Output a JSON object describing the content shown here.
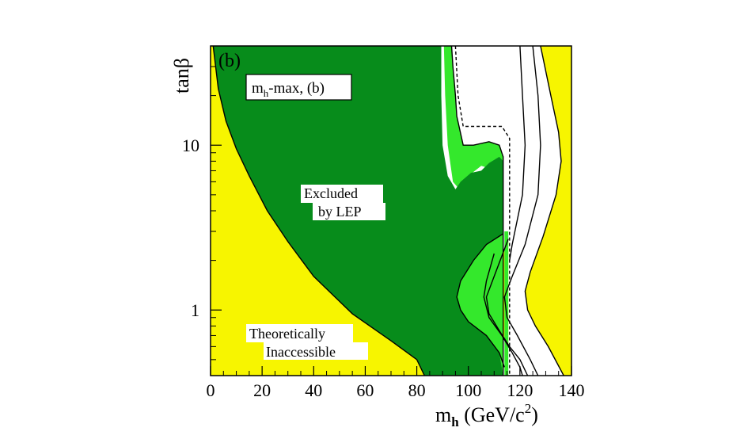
{
  "chart_data": {
    "type": "exclusion-region",
    "panel_label": "(b)",
    "scenario_label": {
      "main": "m",
      "sub": "h",
      "rest": "-max, (b)"
    },
    "xlabel": {
      "main": "m",
      "sub": "h",
      "units": " (GeV/c",
      "sup": "2",
      "close": ")"
    },
    "ylabel": "tanβ",
    "x_scale": "linear",
    "y_scale": "log",
    "xlim": [
      0,
      140
    ],
    "ylim": [
      0.4,
      40
    ],
    "x_ticks": [
      0,
      20,
      40,
      60,
      80,
      100,
      120,
      140
    ],
    "y_ticks": [
      1,
      10
    ],
    "annotations": {
      "excluded": [
        "Excluded",
        "by LEP"
      ],
      "theoretical": [
        "Theoretically",
        "Inaccessible"
      ]
    },
    "colors": {
      "excluded": "#078c1b",
      "expected": "#34e82c",
      "theoretical": "#f7f500",
      "background": "#ffffff",
      "line": "#000000"
    },
    "regions": {
      "theoretical_left": [
        [
          0,
          40
        ],
        [
          0,
          0.4
        ],
        [
          83,
          0.4
        ],
        [
          80,
          0.5
        ],
        [
          70,
          0.65
        ],
        [
          55,
          0.95
        ],
        [
          40,
          1.6
        ],
        [
          30,
          2.6
        ],
        [
          22,
          4
        ],
        [
          15,
          6.5
        ],
        [
          10,
          9.5
        ],
        [
          6,
          14
        ],
        [
          3,
          22
        ],
        [
          1,
          40
        ]
      ],
      "theoretical_right": [
        [
          128,
          40
        ],
        [
          132,
          20
        ],
        [
          135,
          12
        ],
        [
          136,
          8
        ],
        [
          134,
          5
        ],
        [
          129,
          2.8
        ],
        [
          124,
          1.7
        ],
        [
          122,
          1.3
        ],
        [
          123,
          1.0
        ],
        [
          126,
          0.8
        ],
        [
          131,
          0.6
        ],
        [
          137,
          0.4
        ],
        [
          140,
          0.4
        ],
        [
          140,
          40
        ]
      ],
      "theoretical_inner_island": [
        [
          115.5,
          2.7
        ],
        [
          110,
          1.6
        ],
        [
          107,
          1.2
        ],
        [
          108,
          0.95
        ],
        [
          112,
          0.75
        ],
        [
          115.5,
          0.6
        ]
      ],
      "expected_band": [
        [
          90.5,
          40
        ],
        [
          93.5,
          40
        ],
        [
          94,
          30
        ],
        [
          95,
          20
        ],
        [
          95.5,
          15
        ],
        [
          98,
          10
        ],
        [
          102,
          10
        ],
        [
          108,
          10.5
        ],
        [
          112,
          10
        ],
        [
          113.5,
          8.5
        ],
        [
          113.5,
          0.4
        ],
        [
          111,
          0.4
        ],
        [
          111,
          7
        ],
        [
          105,
          7.5
        ],
        [
          100,
          6.5
        ],
        [
          97,
          5.3
        ],
        [
          94,
          6
        ],
        [
          92,
          10
        ],
        [
          91,
          20
        ]
      ],
      "excluded": [
        [
          1,
          40
        ],
        [
          3,
          22
        ],
        [
          6,
          14
        ],
        [
          10,
          9.5
        ],
        [
          15,
          6.5
        ],
        [
          22,
          4
        ],
        [
          30,
          2.6
        ],
        [
          40,
          1.6
        ],
        [
          55,
          0.95
        ],
        [
          70,
          0.65
        ],
        [
          80,
          0.5
        ],
        [
          83,
          0.4
        ],
        [
          113.5,
          0.4
        ],
        [
          112,
          0.55
        ],
        [
          107,
          0.7
        ],
        [
          100,
          0.85
        ],
        [
          97,
          1.0
        ],
        [
          95.5,
          1.2
        ],
        [
          97,
          1.5
        ],
        [
          102,
          2.0
        ],
        [
          107,
          2.5
        ],
        [
          113.5,
          2.9
        ],
        [
          113.5,
          8.0
        ],
        [
          112,
          8.5
        ],
        [
          108,
          7.8
        ],
        [
          105,
          7.0
        ],
        [
          101,
          6.8
        ],
        [
          97,
          6.0
        ],
        [
          95,
          5.4
        ],
        [
          92,
          6.5
        ],
        [
          90,
          10
        ],
        [
          89.5,
          20
        ],
        [
          89.5,
          40
        ]
      ],
      "expected_hole": [
        [
          95.5,
          1.2
        ],
        [
          97,
          1.5
        ],
        [
          102,
          2.0
        ],
        [
          107,
          2.5
        ],
        [
          113.5,
          2.9
        ],
        [
          113.5,
          0.4
        ],
        [
          112,
          0.55
        ],
        [
          107,
          0.7
        ],
        [
          100,
          0.85
        ],
        [
          97,
          1.0
        ]
      ],
      "thin_strip": [
        [
          114,
          3
        ],
        [
          115.5,
          3
        ],
        [
          115.5,
          0.4
        ],
        [
          114,
          0.4
        ]
      ]
    },
    "contours": {
      "excluded_edge_left": [
        [
          1,
          40
        ],
        [
          3,
          22
        ],
        [
          6,
          14
        ],
        [
          10,
          9.5
        ],
        [
          15,
          6.5
        ],
        [
          22,
          4
        ],
        [
          30,
          2.6
        ],
        [
          40,
          1.6
        ],
        [
          55,
          0.95
        ],
        [
          70,
          0.65
        ],
        [
          80,
          0.5
        ],
        [
          83,
          0.4
        ]
      ],
      "observed_95": [
        [
          93.5,
          40
        ],
        [
          94,
          30
        ],
        [
          95,
          20
        ],
        [
          95.5,
          15
        ],
        [
          98,
          10
        ],
        [
          102,
          10
        ],
        [
          108,
          10.5
        ],
        [
          112,
          10
        ],
        [
          113.5,
          8.5
        ],
        [
          113.5,
          0.4
        ]
      ],
      "expected_dashed": [
        [
          95,
          40
        ],
        [
          96,
          20
        ],
        [
          98,
          13
        ],
        [
          106,
          13
        ],
        [
          113,
          13
        ],
        [
          116,
          11
        ],
        [
          116,
          0.4
        ]
      ],
      "hole_edge": [
        [
          113.5,
          2.9
        ],
        [
          107,
          2.5
        ],
        [
          102,
          2.0
        ],
        [
          97,
          1.5
        ],
        [
          95.5,
          1.2
        ],
        [
          97,
          1.0
        ],
        [
          100,
          0.85
        ],
        [
          107,
          0.7
        ],
        [
          112,
          0.55
        ],
        [
          114,
          0.45
        ]
      ],
      "mhmax_1": [
        [
          120,
          40
        ],
        [
          121,
          20
        ],
        [
          122,
          10
        ],
        [
          121,
          5
        ],
        [
          117,
          2.5
        ],
        [
          116,
          2.0
        ]
      ],
      "mhmax_2": [
        [
          125,
          40
        ],
        [
          127,
          20
        ],
        [
          128,
          10
        ],
        [
          127,
          5
        ],
        [
          122,
          2.5
        ],
        [
          117,
          1.6
        ],
        [
          114,
          1.2
        ],
        [
          115,
          0.9
        ],
        [
          119,
          0.7
        ],
        [
          124,
          0.5
        ],
        [
          127,
          0.4
        ]
      ],
      "mhmax_3": [
        [
          128,
          40
        ],
        [
          132,
          20
        ],
        [
          135,
          12
        ],
        [
          136,
          8
        ],
        [
          134,
          5
        ],
        [
          129,
          2.8
        ],
        [
          124,
          1.7
        ],
        [
          122,
          1.3
        ],
        [
          123,
          1.0
        ],
        [
          126,
          0.8
        ],
        [
          131,
          0.6
        ],
        [
          137,
          0.4
        ]
      ],
      "mhmax_4": [
        [
          110,
          2.2
        ],
        [
          107,
          1.5
        ],
        [
          106,
          1.2
        ],
        [
          108,
          0.9
        ],
        [
          113,
          0.7
        ],
        [
          117,
          0.55
        ],
        [
          120,
          0.45
        ],
        [
          121,
          0.4
        ]
      ],
      "mhmax_5": [
        [
          115.5,
          2.7
        ],
        [
          110,
          1.6
        ],
        [
          107,
          1.2
        ],
        [
          108,
          0.95
        ],
        [
          112,
          0.75
        ],
        [
          116,
          0.6
        ],
        [
          120,
          0.5
        ],
        [
          123,
          0.4
        ]
      ]
    }
  }
}
